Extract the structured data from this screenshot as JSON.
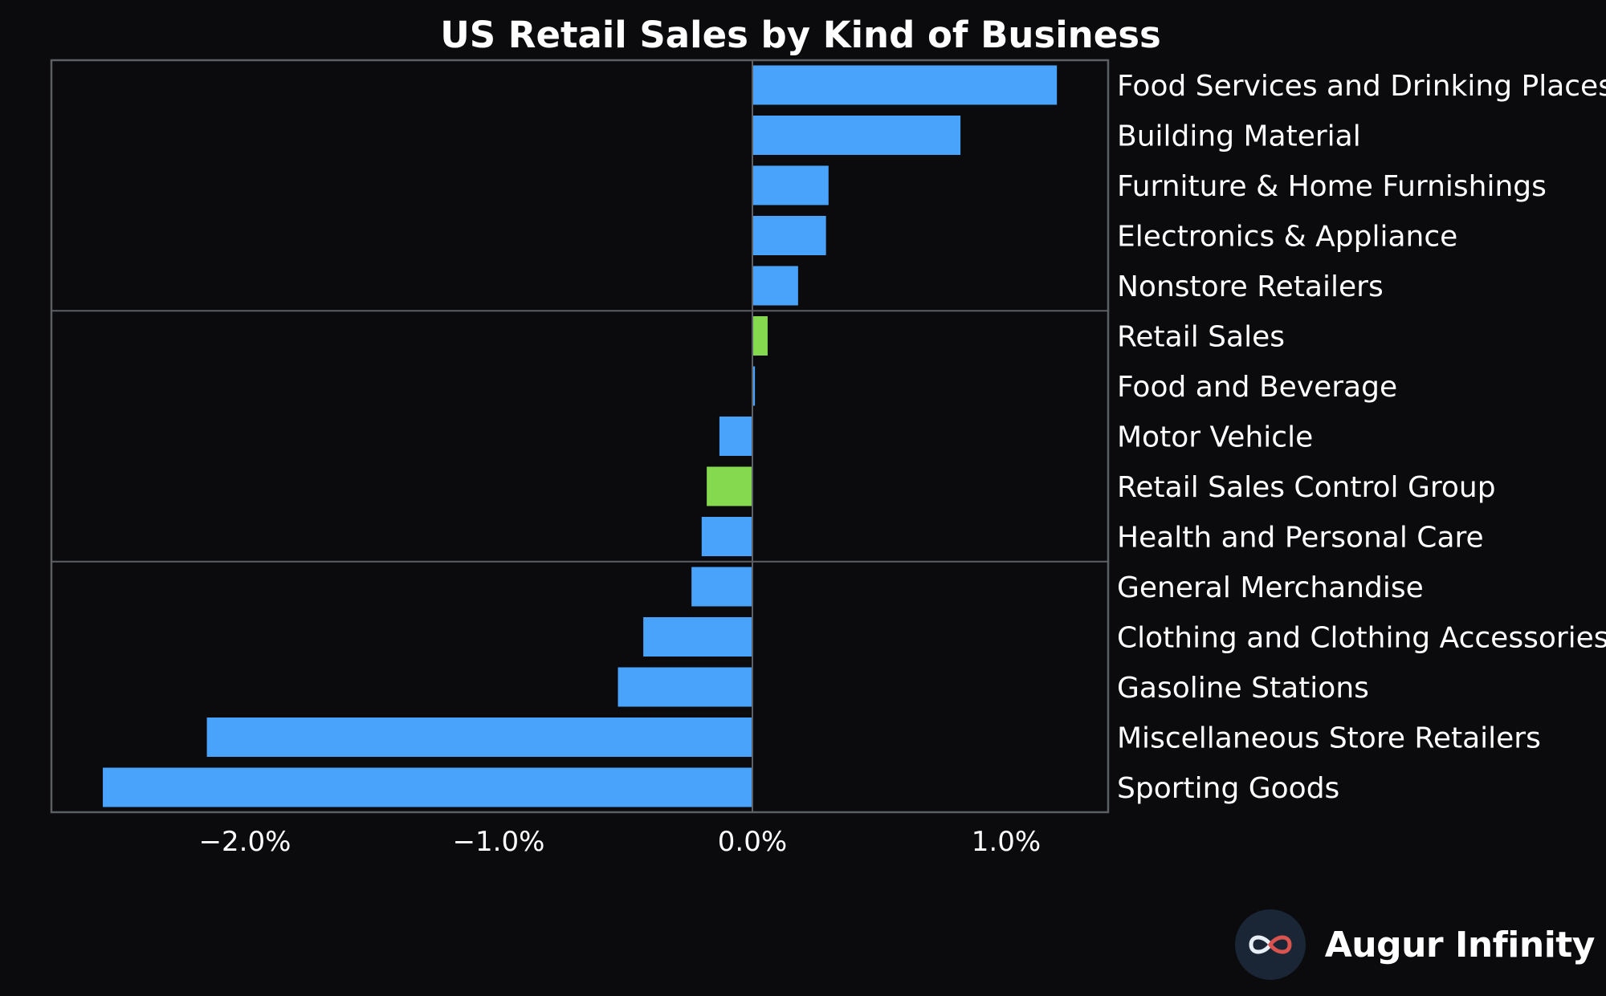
{
  "brand": {
    "name": "Augur Infinity",
    "logo_icon": "infinity-logo-icon"
  },
  "colors": {
    "background": "#0b0b0d",
    "bar": "#4aa3fb",
    "highlight": "#85d94f",
    "frame": "#5c6064",
    "text": "#ffffff"
  },
  "chart_data": {
    "type": "bar",
    "orientation": "horizontal",
    "title": "US Retail Sales by Kind of Business",
    "xlabel": "",
    "ylabel": "",
    "xlim": [
      -2.6,
      1.4
    ],
    "xticks": [
      -2.0,
      -1.0,
      0.0,
      1.0
    ],
    "xtick_labels": [
      "−2.0%",
      "−1.0%",
      "0.0%",
      "1.0%"
    ],
    "grid": false,
    "legend": "none",
    "category_label_position": "right",
    "group_separators_after": [
      "Nonstore Retailers",
      "Health and Personal Care"
    ],
    "categories": [
      "Food Services and Drinking Places",
      "Building Material",
      "Furniture & Home Furnishings",
      "Electronics & Appliance",
      "Nonstore Retailers",
      "Retail Sales",
      "Food and Beverage",
      "Motor Vehicle",
      "Retail Sales Control Group",
      "Health and Personal Care",
      "General Merchandise",
      "Clothing and Clothing Accessories",
      "Gasoline Stations",
      "Miscellaneous Store Retailers",
      "Sporting Goods"
    ],
    "values": [
      1.2,
      0.82,
      0.3,
      0.29,
      0.18,
      0.06,
      0.01,
      -0.13,
      -0.18,
      -0.2,
      -0.24,
      -0.43,
      -0.53,
      -2.15,
      -2.56
    ],
    "highlighted": [
      "Retail Sales",
      "Retail Sales Control Group"
    ]
  }
}
